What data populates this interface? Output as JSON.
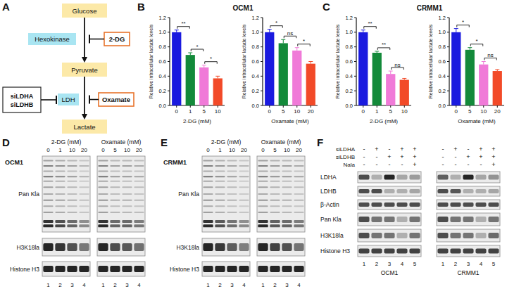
{
  "diagram": {
    "label": "A",
    "substrates": [
      "Glucose",
      "Pyruvate",
      "Lactate"
    ],
    "enzymes": [
      "Hexokinase",
      "LDH"
    ],
    "inhibitors": [
      "2-DG",
      "Oxamate"
    ],
    "knockdown": [
      "siLDHA",
      "siLDHB"
    ]
  },
  "bar_panels": [
    {
      "label": "B",
      "title": "OCM1"
    },
    {
      "label": "C",
      "title": "CRMM1"
    }
  ],
  "chart_data": [
    {
      "type": "bar",
      "x_label": "2-DG (mM)",
      "y_label": "Relative intracellular lactate levels",
      "categories": [
        "0",
        "1",
        "5",
        "10"
      ],
      "values": [
        1.0,
        0.69,
        0.52,
        0.37
      ],
      "errors": [
        0.03,
        0.03,
        0.03,
        0.03
      ],
      "colors": [
        "#1a1adf",
        "#138a3a",
        "#f07ad8",
        "#f24a28"
      ],
      "ylim": [
        0,
        1.2
      ],
      "yticks": [
        {
          "value": 0,
          "label": "0.0"
        },
        0.2,
        0.4,
        0.6,
        0.8,
        {
          "value": 1,
          "label": "1.0"
        },
        1.2
      ],
      "annotations": [
        "**",
        "*",
        "*"
      ]
    },
    {
      "type": "bar",
      "x_label": "Oxamate (mM)",
      "y_label": "Relative intracellular lactate levels",
      "categories": [
        "0",
        "5",
        "10",
        "20"
      ],
      "values": [
        1.0,
        0.85,
        0.75,
        0.57
      ],
      "errors": [
        0.04,
        0.05,
        0.04,
        0.03
      ],
      "colors": [
        "#1a1adf",
        "#138a3a",
        "#f07ad8",
        "#f24a28"
      ],
      "ylim": [
        0,
        1.2
      ],
      "yticks": [
        {
          "value": 0,
          "label": "0.0"
        },
        0.2,
        0.4,
        0.6,
        0.8,
        {
          "value": 1,
          "label": "1.0"
        },
        1.2
      ],
      "annotations": [
        "*",
        "ns",
        "*"
      ]
    },
    {
      "type": "bar",
      "x_label": "2-DG (mM)",
      "y_label": "Relative intracellular lactate levels",
      "categories": [
        "0",
        "1",
        "5",
        "10"
      ],
      "values": [
        1.0,
        0.72,
        0.43,
        0.35
      ],
      "errors": [
        0.03,
        0.02,
        0.04,
        0.02
      ],
      "colors": [
        "#1a1adf",
        "#138a3a",
        "#f07ad8",
        "#f24a28"
      ],
      "ylim": [
        0,
        1.2
      ],
      "yticks": [
        {
          "value": 0,
          "label": "0.0"
        },
        0.2,
        0.4,
        0.6,
        0.8,
        {
          "value": 1,
          "label": "1.0"
        },
        1.2
      ],
      "annotations": [
        "**",
        "**",
        "ns"
      ]
    },
    {
      "type": "bar",
      "x_label": "Oxamate (mM)",
      "y_label": "Relative intracellular lactate levels",
      "categories": [
        "0",
        "5",
        "10",
        "20"
      ],
      "values": [
        1.0,
        0.76,
        0.56,
        0.47
      ],
      "errors": [
        0.05,
        0.03,
        0.04,
        0.02
      ],
      "colors": [
        "#1a1adf",
        "#138a3a",
        "#f07ad8",
        "#f24a28"
      ],
      "ylim": [
        0,
        1.2
      ],
      "yticks": [
        {
          "value": 0,
          "label": "0.0"
        },
        0.2,
        0.4,
        0.6,
        0.8,
        {
          "value": 1,
          "label": "1.0"
        },
        1.2
      ],
      "annotations": [
        "*",
        "*",
        "ns"
      ]
    }
  ],
  "blots": {
    "d": {
      "label": "D",
      "cell_line": "OCM1",
      "treatments": [
        {
          "title": "2-DG (mM)",
          "doses": [
            "0",
            "1",
            "10",
            "20"
          ]
        },
        {
          "title": "Oxamate (mM)",
          "doses": [
            "0",
            "5",
            "10",
            "20"
          ]
        }
      ],
      "rows": [
        "Pan Kla",
        "H3K18la",
        "Histone H3"
      ],
      "lanes": [
        "1",
        "2",
        "3",
        "4"
      ]
    },
    "e": {
      "label": "E",
      "cell_line": "CRMM1",
      "treatments": [
        {
          "title": "2-DG (mM)",
          "doses": [
            "0",
            "1",
            "10",
            "20"
          ]
        },
        {
          "title": "Oxamate (mM)",
          "doses": [
            "0",
            "5",
            "10",
            "20"
          ]
        }
      ],
      "rows": [
        "Pan Kla",
        "H3K18la",
        "Histone H3"
      ],
      "lanes": [
        "1",
        "2",
        "3",
        "4"
      ]
    },
    "f": {
      "label": "F",
      "conditions": [
        {
          "name": "siLDHA",
          "signs": [
            "-",
            "+",
            "-",
            "+",
            "+"
          ]
        },
        {
          "name": "siLDHB",
          "signs": [
            "-",
            "-",
            "+",
            "+",
            "+"
          ]
        },
        {
          "name": "Nala",
          "signs": [
            "-",
            "-",
            "-",
            "-",
            "+"
          ]
        }
      ],
      "rows": [
        "LDHA",
        "LDHB",
        "β-Actin",
        "Pan Kla",
        "H3K18la",
        "Histone H3"
      ],
      "lanes": [
        "1",
        "2",
        "3",
        "4",
        "5"
      ],
      "cell_lines": [
        "OCM1",
        "CRMM1"
      ]
    }
  }
}
